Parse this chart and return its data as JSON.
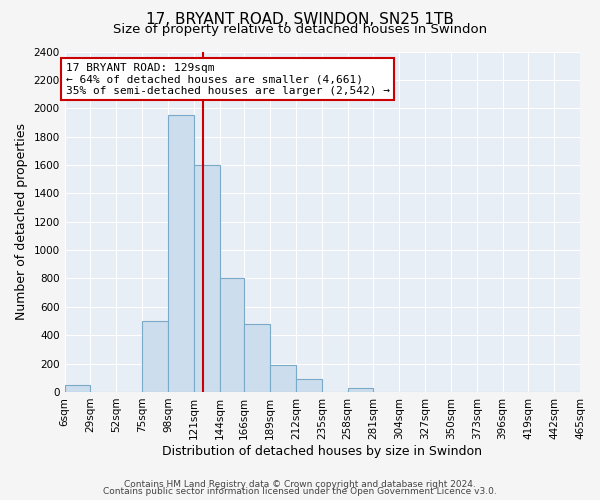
{
  "title": "17, BRYANT ROAD, SWINDON, SN25 1TB",
  "subtitle": "Size of property relative to detached houses in Swindon",
  "xlabel": "Distribution of detached houses by size in Swindon",
  "ylabel": "Number of detached properties",
  "bar_edges": [
    6,
    29,
    52,
    75,
    98,
    121,
    144,
    166,
    189,
    212,
    235,
    258,
    281,
    304,
    327,
    350,
    373,
    396,
    419,
    442,
    465
  ],
  "bar_heights": [
    50,
    0,
    0,
    500,
    1950,
    1600,
    800,
    480,
    190,
    90,
    0,
    30,
    0,
    0,
    0,
    0,
    0,
    0,
    0,
    0
  ],
  "bar_color": "#ccdded",
  "bar_edgecolor": "#7aaac8",
  "property_value": 129,
  "vline_color": "#cc0000",
  "annotation_line1": "17 BRYANT ROAD: 129sqm",
  "annotation_line2": "← 64% of detached houses are smaller (4,661)",
  "annotation_line3": "35% of semi-detached houses are larger (2,542) →",
  "annotation_box_edgecolor": "#cc0000",
  "annotation_box_facecolor": "#ffffff",
  "ylim": [
    0,
    2400
  ],
  "yticks": [
    0,
    200,
    400,
    600,
    800,
    1000,
    1200,
    1400,
    1600,
    1800,
    2000,
    2200,
    2400
  ],
  "xtick_labels": [
    "6sqm",
    "29sqm",
    "52sqm",
    "75sqm",
    "98sqm",
    "121sqm",
    "144sqm",
    "166sqm",
    "189sqm",
    "212sqm",
    "235sqm",
    "258sqm",
    "281sqm",
    "304sqm",
    "327sqm",
    "350sqm",
    "373sqm",
    "396sqm",
    "419sqm",
    "442sqm",
    "465sqm"
  ],
  "footer_line1": "Contains HM Land Registry data © Crown copyright and database right 2024.",
  "footer_line2": "Contains public sector information licensed under the Open Government Licence v3.0.",
  "grid_color": "#ffffff",
  "plot_bg_color": "#e8eef6",
  "fig_bg_color": "#f5f5f5",
  "title_fontsize": 11,
  "subtitle_fontsize": 9.5,
  "axis_label_fontsize": 9,
  "tick_fontsize": 7.5,
  "footer_fontsize": 6.5,
  "annotation_fontsize": 8
}
